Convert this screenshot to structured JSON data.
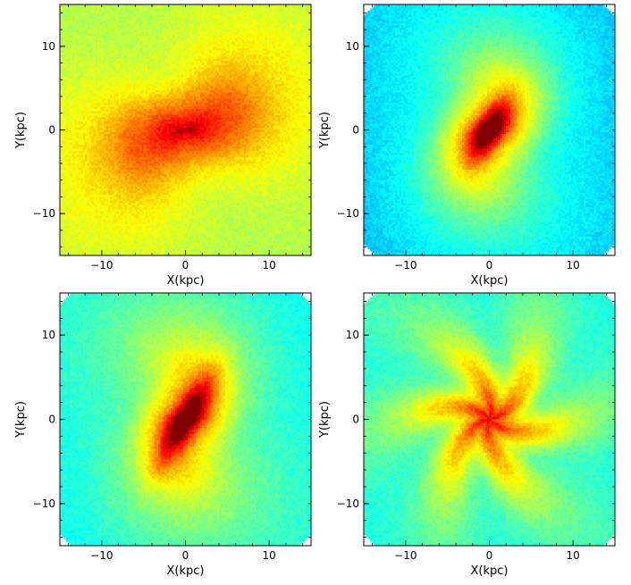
{
  "chart_data": [
    {
      "type": "heatmap",
      "xlabel": "X(kpc)",
      "ylabel": "Y(kpc)",
      "xlim": [
        -15,
        15
      ],
      "ylim": [
        -15,
        15
      ],
      "xticks": [
        -10,
        0,
        10
      ],
      "yticks": [
        -10,
        0,
        10
      ],
      "colormap": "jet",
      "morphology": "centrally concentrated disk with tightly wound inner two-arm spiral",
      "center": [
        0,
        0
      ],
      "peak_level": 0.95,
      "edge_level": 0.55,
      "arms": 2,
      "pitch": 1.1,
      "bar_length_kpc": 0,
      "clipped_corners": false
    },
    {
      "type": "heatmap",
      "xlabel": "X(kpc)",
      "ylabel": "Y(kpc)",
      "xlim": [
        -15,
        15
      ],
      "ylim": [
        -15,
        15
      ],
      "xticks": [
        -10,
        0,
        10
      ],
      "yticks": [
        -10,
        0,
        10
      ],
      "colormap": "jet",
      "morphology": "barred disk with two open spiral arms",
      "center": [
        0,
        0
      ],
      "peak_level": 0.93,
      "edge_level": 0.3,
      "arms": 2,
      "pitch": 0.55,
      "bar_length_kpc": 4,
      "bar_angle_deg": 60,
      "clipped_corners": true
    },
    {
      "type": "heatmap",
      "xlabel": "X(kpc)",
      "ylabel": "Y(kpc)",
      "xlim": [
        -15,
        15
      ],
      "ylim": [
        -15,
        15
      ],
      "xticks": [
        -10,
        0,
        10
      ],
      "yticks": [
        -10,
        0,
        10
      ],
      "colormap": "jet",
      "morphology": "strong central bar with faint outer arms",
      "center": [
        0,
        0
      ],
      "peak_level": 0.92,
      "edge_level": 0.38,
      "arms": 2,
      "pitch": 0.5,
      "bar_length_kpc": 6,
      "bar_angle_deg": 60,
      "clipped_corners": true
    },
    {
      "type": "heatmap",
      "xlabel": "X(kpc)",
      "ylabel": "Y(kpc)",
      "xlim": [
        -15,
        15
      ],
      "ylim": [
        -15,
        15
      ],
      "xticks": [
        -10,
        0,
        10
      ],
      "yticks": [
        -10,
        0,
        10
      ],
      "colormap": "jet",
      "morphology": "flocculent multi-arm spiral",
      "center": [
        0,
        0
      ],
      "peak_level": 0.9,
      "edge_level": 0.4,
      "arms": 6,
      "pitch": 0.7,
      "bar_length_kpc": 0,
      "clipped_corners": true
    }
  ]
}
